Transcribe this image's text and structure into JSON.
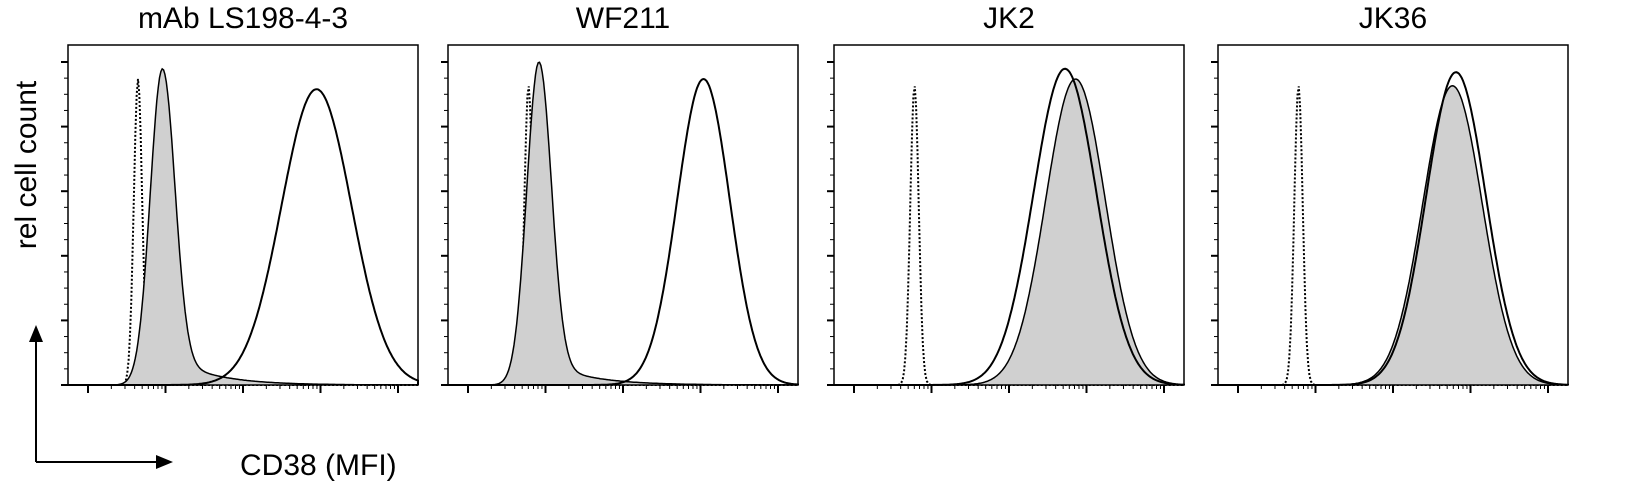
{
  "figure": {
    "ylabel": "rel cell count",
    "xlabel": "CD38 (MFI)"
  },
  "colors": {
    "frame": "#000000",
    "filled_histogram": "#d0d0d0",
    "outline_histogram": "#000000",
    "isotype_dotted": "#000000"
  },
  "chart_data": [
    {
      "type": "area",
      "title": "mAb LS198-4-3",
      "x_scale": "log",
      "xlim": [
        0,
        1
      ],
      "ylim": [
        0,
        1
      ],
      "grid": false,
      "series": [
        {
          "style": "dotted",
          "peak_x": 0.2,
          "peak_y": 0.9,
          "width": 0.012,
          "tail": 0.0
        },
        {
          "style": "filled",
          "peak_x": 0.27,
          "peak_y": 0.93,
          "width": 0.035,
          "tail": 0.1
        },
        {
          "style": "outline",
          "peak_x": 0.71,
          "peak_y": 0.87,
          "width": 0.1,
          "tail": 0.0
        }
      ]
    },
    {
      "type": "area",
      "title": "WF211",
      "x_scale": "log",
      "xlim": [
        0,
        1
      ],
      "ylim": [
        0,
        1
      ],
      "grid": false,
      "series": [
        {
          "style": "dotted",
          "peak_x": 0.23,
          "peak_y": 0.88,
          "width": 0.012,
          "tail": 0.0
        },
        {
          "style": "filled",
          "peak_x": 0.26,
          "peak_y": 0.95,
          "width": 0.035,
          "tail": 0.08
        },
        {
          "style": "outline",
          "peak_x": 0.73,
          "peak_y": 0.9,
          "width": 0.075,
          "tail": 0.0
        }
      ]
    },
    {
      "type": "area",
      "title": "JK2",
      "x_scale": "log",
      "xlim": [
        0,
        1
      ],
      "ylim": [
        0,
        1
      ],
      "grid": false,
      "series": [
        {
          "style": "dotted",
          "peak_x": 0.23,
          "peak_y": 0.88,
          "width": 0.012,
          "tail": 0.0
        },
        {
          "style": "filled",
          "peak_x": 0.69,
          "peak_y": 0.9,
          "width": 0.085,
          "tail": 0.0
        },
        {
          "style": "outline",
          "peak_x": 0.66,
          "peak_y": 0.93,
          "width": 0.09,
          "tail": 0.0
        }
      ]
    },
    {
      "type": "area",
      "title": "JK36",
      "x_scale": "log",
      "xlim": [
        0,
        1
      ],
      "ylim": [
        0,
        1
      ],
      "grid": false,
      "series": [
        {
          "style": "dotted",
          "peak_x": 0.23,
          "peak_y": 0.88,
          "width": 0.012,
          "tail": 0.0
        },
        {
          "style": "filled",
          "peak_x": 0.67,
          "peak_y": 0.88,
          "width": 0.085,
          "tail": 0.0
        },
        {
          "style": "outline",
          "peak_x": 0.68,
          "peak_y": 0.92,
          "width": 0.085,
          "tail": 0.0
        }
      ]
    }
  ]
}
